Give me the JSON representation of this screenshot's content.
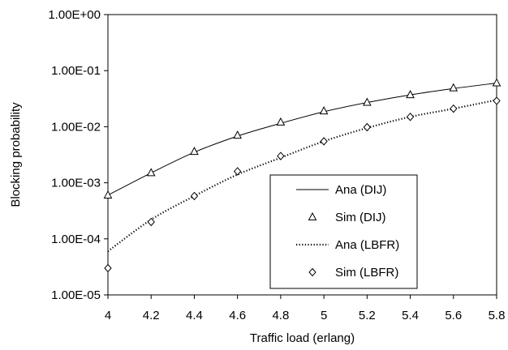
{
  "chart_data": {
    "type": "line",
    "title": "",
    "xlabel": "Traffic load (erlang)",
    "ylabel": "Blocking probability",
    "x_ticks": [
      4,
      4.2,
      4.4,
      4.6,
      4.8,
      5,
      5.2,
      5.4,
      5.6,
      5.8
    ],
    "x_tick_labels": [
      "4",
      "4.2",
      "4.4",
      "4.6",
      "4.8",
      "5",
      "5.2",
      "5.4",
      "5.6",
      "5.8"
    ],
    "xlim": [
      4,
      5.8
    ],
    "y_scale": "log",
    "ylim": [
      1e-05,
      1
    ],
    "y_ticks": [
      1e-05,
      0.0001,
      0.001,
      0.01,
      0.1,
      1
    ],
    "y_tick_labels": [
      "1.00E-05",
      "1.00E-04",
      "1.00E-03",
      "1.00E-02",
      "1.00E-01",
      "1.00E+00"
    ],
    "grid": false,
    "legend_position": "bottom-right",
    "series": [
      {
        "name": "Ana (DIJ)",
        "style": "solid-line",
        "x": [
          4,
          4.2,
          4.4,
          4.6,
          4.8,
          5,
          5.2,
          5.4,
          5.6,
          5.8
        ],
        "y": [
          0.0006,
          0.0015,
          0.0035,
          0.0068,
          0.0115,
          0.0185,
          0.027,
          0.037,
          0.048,
          0.06
        ]
      },
      {
        "name": "Sim (DIJ)",
        "style": "triangle-marker",
        "x": [
          4,
          4.2,
          4.4,
          4.6,
          4.8,
          5,
          5.2,
          5.4,
          5.6,
          5.8
        ],
        "y": [
          0.0006,
          0.0015,
          0.0036,
          0.007,
          0.012,
          0.019,
          0.027,
          0.037,
          0.049,
          0.06
        ]
      },
      {
        "name": "Ana (LBFR)",
        "style": "dotted-line",
        "x": [
          4,
          4.2,
          4.4,
          4.6,
          4.8,
          5,
          5.2,
          5.4,
          5.6,
          5.8
        ],
        "y": [
          6e-05,
          0.00022,
          0.00058,
          0.0014,
          0.0028,
          0.0055,
          0.0095,
          0.015,
          0.021,
          0.03
        ]
      },
      {
        "name": "Sim (LBFR)",
        "style": "diamond-marker",
        "x": [
          4,
          4.2,
          4.4,
          4.6,
          4.8,
          5,
          5.2,
          5.4,
          5.6,
          5.8
        ],
        "y": [
          3e-05,
          0.0002,
          0.00058,
          0.0016,
          0.003,
          0.0055,
          0.0098,
          0.015,
          0.021,
          0.029
        ]
      }
    ]
  }
}
